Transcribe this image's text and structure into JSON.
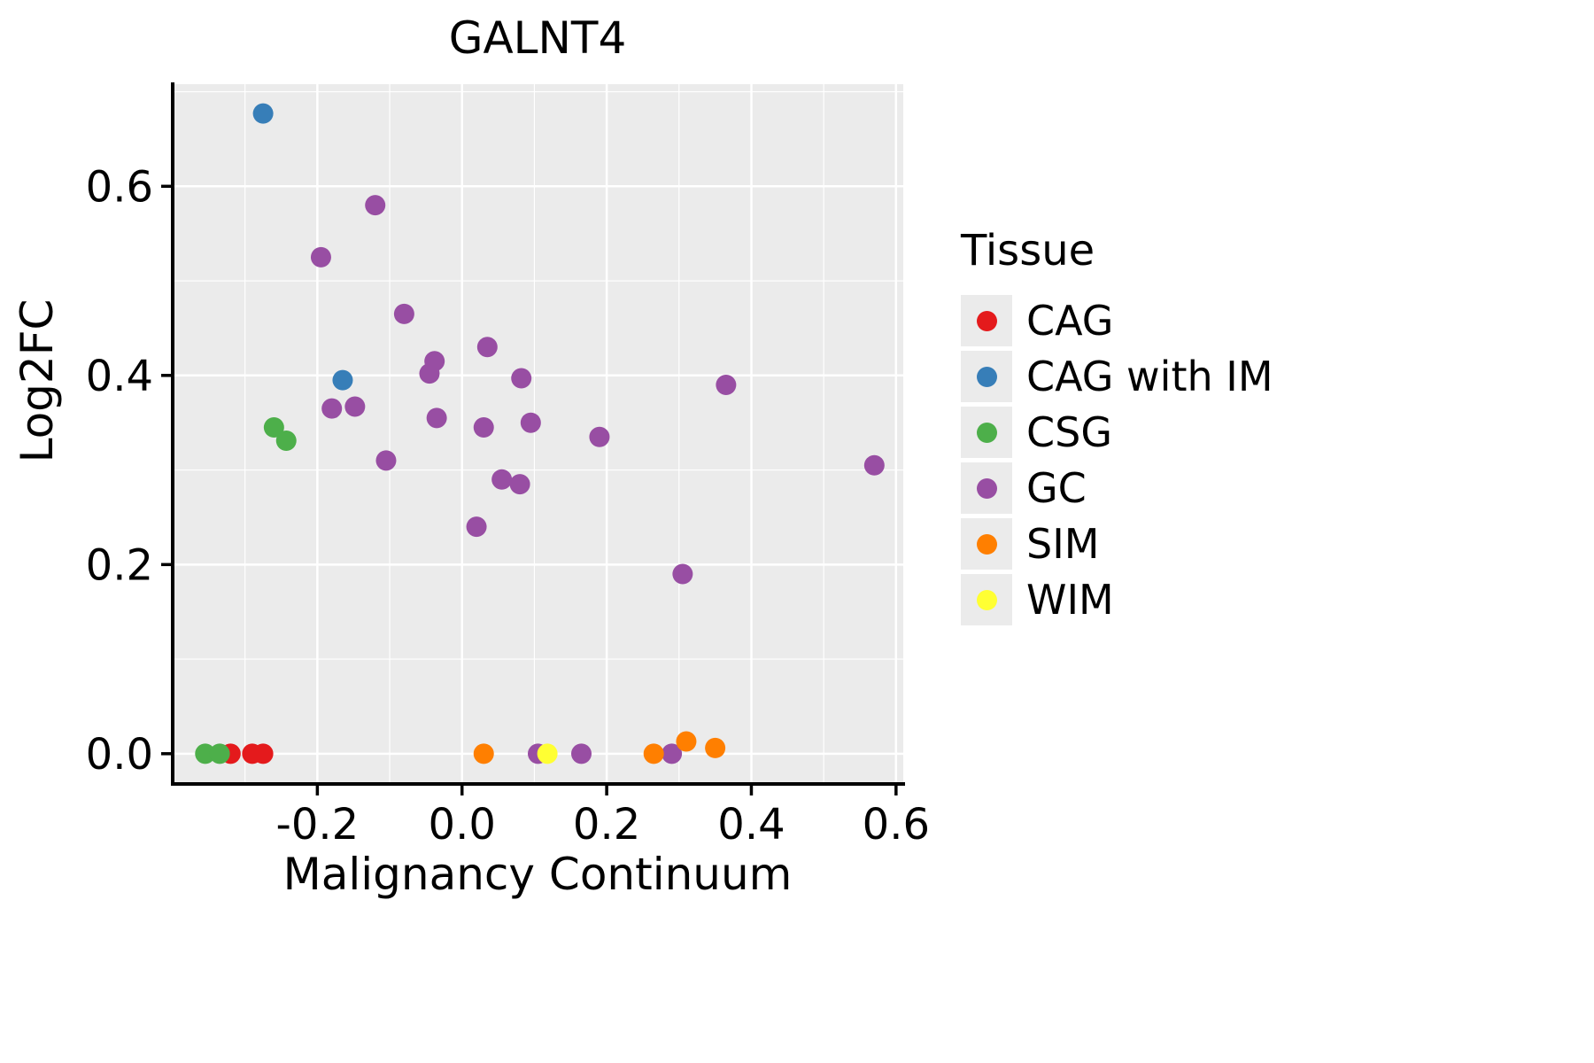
{
  "chart_data": {
    "type": "scatter",
    "title": "GALNT4",
    "xlabel": "Malignancy Continuum",
    "ylabel": "Log2FC",
    "legend_title": "Tissue",
    "legend_position": "right",
    "grid": true,
    "panel_background": "#EBEBEB",
    "grid_color": "#FFFFFF",
    "xlim": [
      -0.4,
      0.61
    ],
    "ylim": [
      -0.032,
      0.708
    ],
    "xticks": [
      -0.2,
      0.0,
      0.2,
      0.4,
      0.6
    ],
    "yticks": [
      0.0,
      0.2,
      0.4,
      0.6
    ],
    "xticks_minor": [
      -0.3,
      -0.1,
      0.1,
      0.3,
      0.5
    ],
    "yticks_minor": [
      0.1,
      0.3,
      0.5,
      0.7
    ],
    "series": [
      {
        "name": "CAG",
        "color": "#E41A1C",
        "points": [
          [
            -0.32,
            0.0
          ],
          [
            -0.29,
            0.0
          ],
          [
            -0.275,
            0.0
          ]
        ]
      },
      {
        "name": "CAG with IM",
        "color": "#377EB8",
        "points": [
          [
            -0.275,
            0.677
          ],
          [
            -0.165,
            0.395
          ]
        ]
      },
      {
        "name": "CSG",
        "color": "#4DAF4A",
        "points": [
          [
            -0.355,
            0.0
          ],
          [
            -0.335,
            0.0
          ],
          [
            -0.26,
            0.345
          ],
          [
            -0.243,
            0.331
          ]
        ]
      },
      {
        "name": "GC",
        "color": "#984EA3",
        "points": [
          [
            -0.195,
            0.525
          ],
          [
            -0.12,
            0.58
          ],
          [
            -0.18,
            0.365
          ],
          [
            -0.148,
            0.367
          ],
          [
            -0.105,
            0.31
          ],
          [
            -0.08,
            0.465
          ],
          [
            -0.045,
            0.402
          ],
          [
            -0.038,
            0.415
          ],
          [
            -0.035,
            0.355
          ],
          [
            0.02,
            0.24
          ],
          [
            0.03,
            0.345
          ],
          [
            0.035,
            0.43
          ],
          [
            0.055,
            0.29
          ],
          [
            0.08,
            0.285
          ],
          [
            0.082,
            0.397
          ],
          [
            0.095,
            0.35
          ],
          [
            0.105,
            0.0
          ],
          [
            0.165,
            0.0
          ],
          [
            0.19,
            0.335
          ],
          [
            0.29,
            0.0
          ],
          [
            0.305,
            0.19
          ],
          [
            0.365,
            0.39
          ],
          [
            0.57,
            0.305
          ]
        ]
      },
      {
        "name": "SIM",
        "color": "#FF7F00",
        "points": [
          [
            0.03,
            0.0
          ],
          [
            0.265,
            0.0
          ],
          [
            0.31,
            0.013
          ],
          [
            0.35,
            0.006
          ]
        ]
      },
      {
        "name": "WIM",
        "color": "#FFFF33",
        "points": [
          [
            0.118,
            0.0
          ]
        ]
      }
    ]
  }
}
